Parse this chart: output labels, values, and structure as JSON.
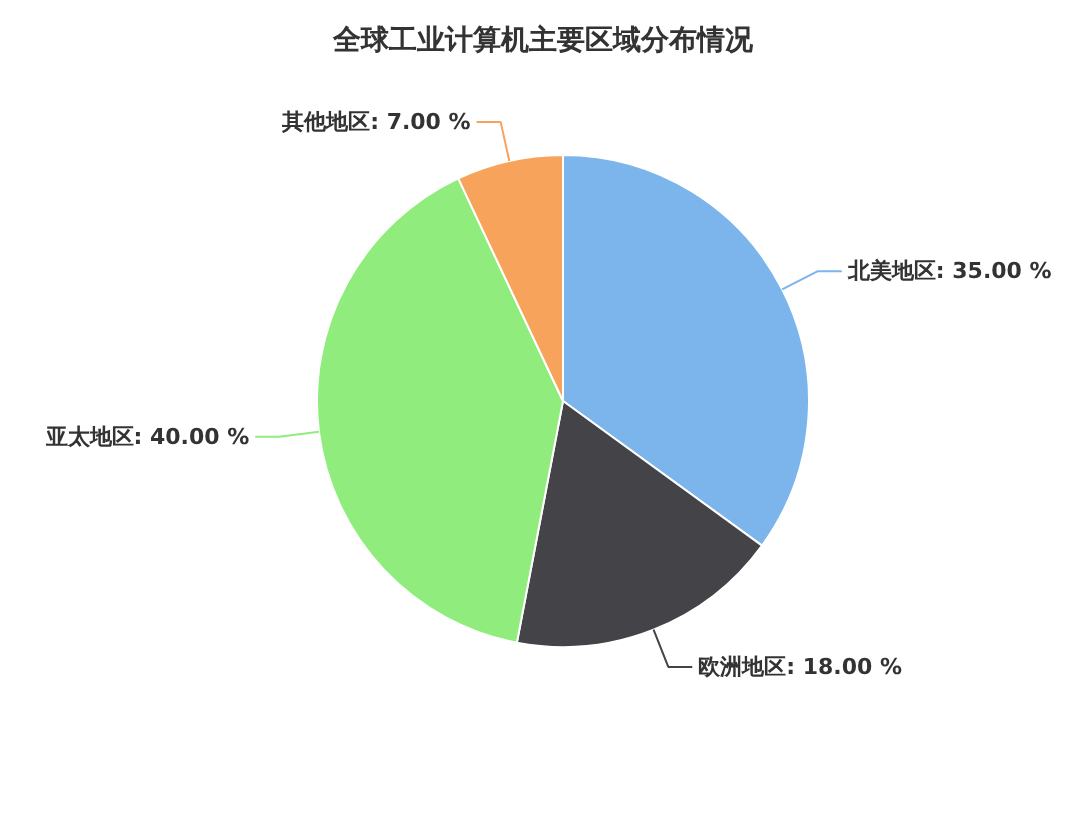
{
  "chart_data": {
    "type": "pie",
    "title": "全球工业计算机主要区域分布情况",
    "categories": [
      "北美地区",
      "欧洲地区",
      "亚太地区",
      "其他地区"
    ],
    "values": [
      35,
      18,
      40,
      7
    ],
    "value_labels": [
      "35.00 %",
      "18.00 %",
      "40.00 %",
      "7.00 %"
    ],
    "colors": [
      "#7cb5ec",
      "#434348",
      "#90ed7d",
      "#f7a35c"
    ]
  }
}
